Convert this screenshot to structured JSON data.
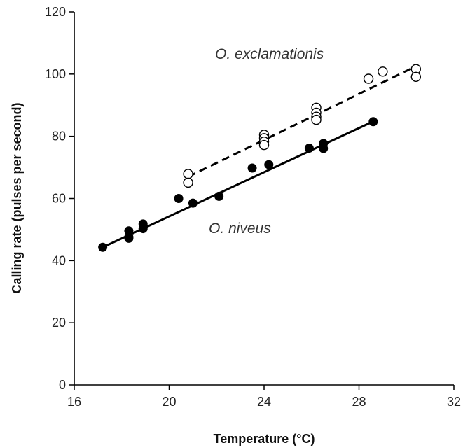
{
  "chart_data": {
    "type": "scatter",
    "title": "",
    "xlabel": "Temperature (°C)",
    "ylabel": "Calling rate (pulses per second)",
    "xlim": [
      16,
      32
    ],
    "ylim": [
      0,
      120
    ],
    "xticks": [
      16,
      20,
      24,
      28,
      32
    ],
    "yticks": [
      0,
      20,
      40,
      60,
      80,
      100,
      120
    ],
    "grid": false,
    "legend": "none",
    "series": [
      {
        "name": "O. exclamationis",
        "marker": "open-circle",
        "line": "dashed",
        "color": "#000000",
        "points": [
          [
            20.8,
            67.9
          ],
          [
            20.8,
            65.1
          ],
          [
            24.0,
            80.5
          ],
          [
            24.0,
            79.4
          ],
          [
            24.0,
            78.3
          ],
          [
            24.0,
            77.2
          ],
          [
            26.2,
            89.2
          ],
          [
            26.2,
            87.6
          ],
          [
            26.2,
            86.3
          ],
          [
            26.2,
            85.3
          ],
          [
            28.4,
            98.5
          ],
          [
            29.0,
            100.8
          ],
          [
            30.4,
            101.6
          ],
          [
            30.4,
            99.1
          ]
        ],
        "fit": [
          [
            20.8,
            67.0
          ],
          [
            30.4,
            102.5
          ]
        ]
      },
      {
        "name": "O. niveus",
        "marker": "filled-circle",
        "line": "solid",
        "color": "#000000",
        "points": [
          [
            17.2,
            44.3
          ],
          [
            18.3,
            47.2
          ],
          [
            18.3,
            47.6
          ],
          [
            18.3,
            49.6
          ],
          [
            18.9,
            50.3
          ],
          [
            18.9,
            51.8
          ],
          [
            20.4,
            60.0
          ],
          [
            21.0,
            58.5
          ],
          [
            22.1,
            60.7
          ],
          [
            23.5,
            69.8
          ],
          [
            24.2,
            70.9
          ],
          [
            25.9,
            76.2
          ],
          [
            26.5,
            76.1
          ],
          [
            26.5,
            77.7
          ],
          [
            28.6,
            84.7
          ]
        ],
        "fit": [
          [
            17.2,
            44.3
          ],
          [
            28.6,
            84.8
          ]
        ]
      }
    ],
    "annotations": [
      {
        "text": "O. exclamationis",
        "x": 22.5,
        "y": 103
      },
      {
        "text": "O. niveus",
        "x": 21.5,
        "y": 52.5
      }
    ]
  }
}
